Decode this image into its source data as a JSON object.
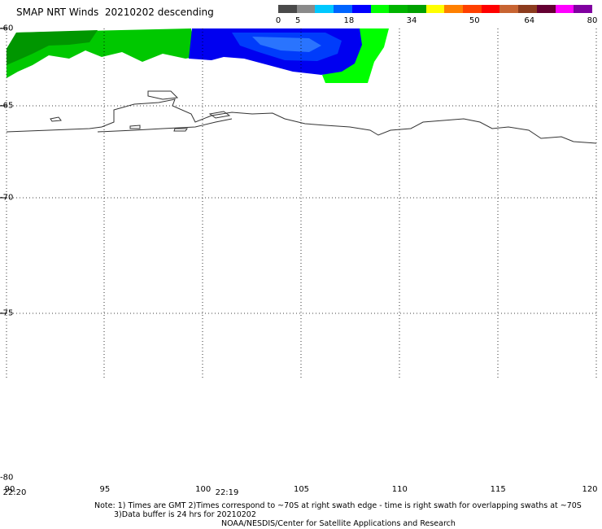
{
  "header": {
    "title": "SMAP NRT Winds  20210202 descending"
  },
  "colorbar": {
    "segments": [
      "#4a4a4a",
      "#8a8a8a",
      "#00c8ff",
      "#0064ff",
      "#0000ff",
      "#00ff00",
      "#00b400",
      "#00a000",
      "#ffff00",
      "#ff8000",
      "#ff4000",
      "#ff0000",
      "#c86432",
      "#8c3c1e",
      "#640032",
      "#ff00ff",
      "#8000a0"
    ],
    "labels": [
      {
        "text": "0",
        "at": 0
      },
      {
        "text": "5",
        "at": 5
      },
      {
        "text": "18",
        "at": 18
      },
      {
        "text": "34",
        "at": 34
      },
      {
        "text": "50",
        "at": 50
      },
      {
        "text": "64",
        "at": 64
      },
      {
        "text": "80",
        "at": 80
      }
    ]
  },
  "axes": {
    "lat_labels": [
      {
        "text": "-60",
        "value": -60
      },
      {
        "text": "-65",
        "value": -65
      },
      {
        "text": "-70",
        "value": -70
      },
      {
        "text": "-75",
        "value": -75
      },
      {
        "text": "-80",
        "value": -80
      }
    ],
    "lon_labels": [
      {
        "text": "90",
        "value": 90
      },
      {
        "text": "95",
        "value": 95
      },
      {
        "text": "100",
        "value": 100
      },
      {
        "text": "105",
        "value": 105
      },
      {
        "text": "110",
        "value": 110
      },
      {
        "text": "115",
        "value": 115
      },
      {
        "text": "120",
        "value": 120
      }
    ],
    "time_labels": [
      {
        "text": "22:20",
        "lon": 90
      },
      {
        "text": "22:19",
        "lon": 100.8
      }
    ]
  },
  "footer": {
    "note_line1": "Note: 1) Times are GMT 2)Times correspond to ~70S at right swath edge - time is right swath for overlapping swaths at ~70S",
    "note_line2": "3)Data buffer is 24 hrs for 20210202",
    "credit": "NOAA/NESDIS/Center for Satellite Applications and Research"
  }
}
